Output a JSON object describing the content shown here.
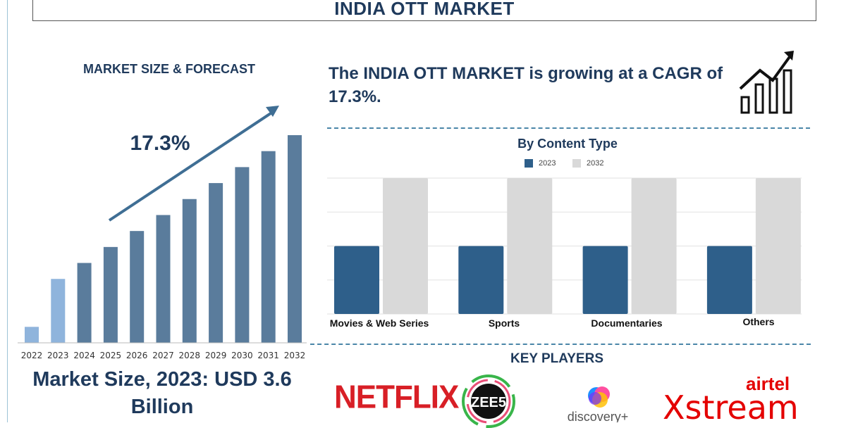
{
  "header": {
    "title": "INDIA OTT MARKET"
  },
  "forecast": {
    "title": "MARKET SIZE & FORECAST",
    "cagr_label": "17.3%",
    "market_size_text": "Market Size, 2023: USD 3.6 Billion"
  },
  "summary": {
    "text": "The INDIA OTT MARKET is growing at a CAGR of 17.3%."
  },
  "key_players": {
    "title": "KEY PLAYERS",
    "netflix": "NETFLIX",
    "zee5": "ZEE5",
    "discovery": "discovery+",
    "airtel": "airtel",
    "xstream": "Xstream"
  },
  "colors": {
    "bar_light": "#8fb4dc",
    "bar_main": "#5a7c9c",
    "bar_2023": "#2e5f8a",
    "bar_2032": "#d9d9d9",
    "arrow": "#3f6e94",
    "title_text": "#1f3a5c"
  },
  "chart_data": [
    {
      "type": "bar",
      "title": "MARKET SIZE & FORECAST",
      "categories": [
        "2022",
        "2023",
        "2024",
        "2025",
        "2026",
        "2027",
        "2028",
        "2029",
        "2030",
        "2031",
        "2032"
      ],
      "values": [
        1,
        4,
        5,
        6,
        7,
        8,
        9,
        10,
        11,
        12,
        13
      ],
      "annotation": "17.3%",
      "note": "relative illustrative values, no y-axis shown"
    },
    {
      "type": "bar",
      "title": "By Content Type",
      "categories": [
        "Movies & Web Series",
        "Sports",
        "Documentaries",
        "Others"
      ],
      "series": [
        {
          "name": "2023",
          "values": [
            2,
            2,
            2,
            2
          ]
        },
        {
          "name": "2032",
          "values": [
            4,
            4,
            4,
            4
          ]
        }
      ],
      "ylim": [
        0,
        4
      ],
      "grid": true,
      "legend": "top-center"
    }
  ]
}
